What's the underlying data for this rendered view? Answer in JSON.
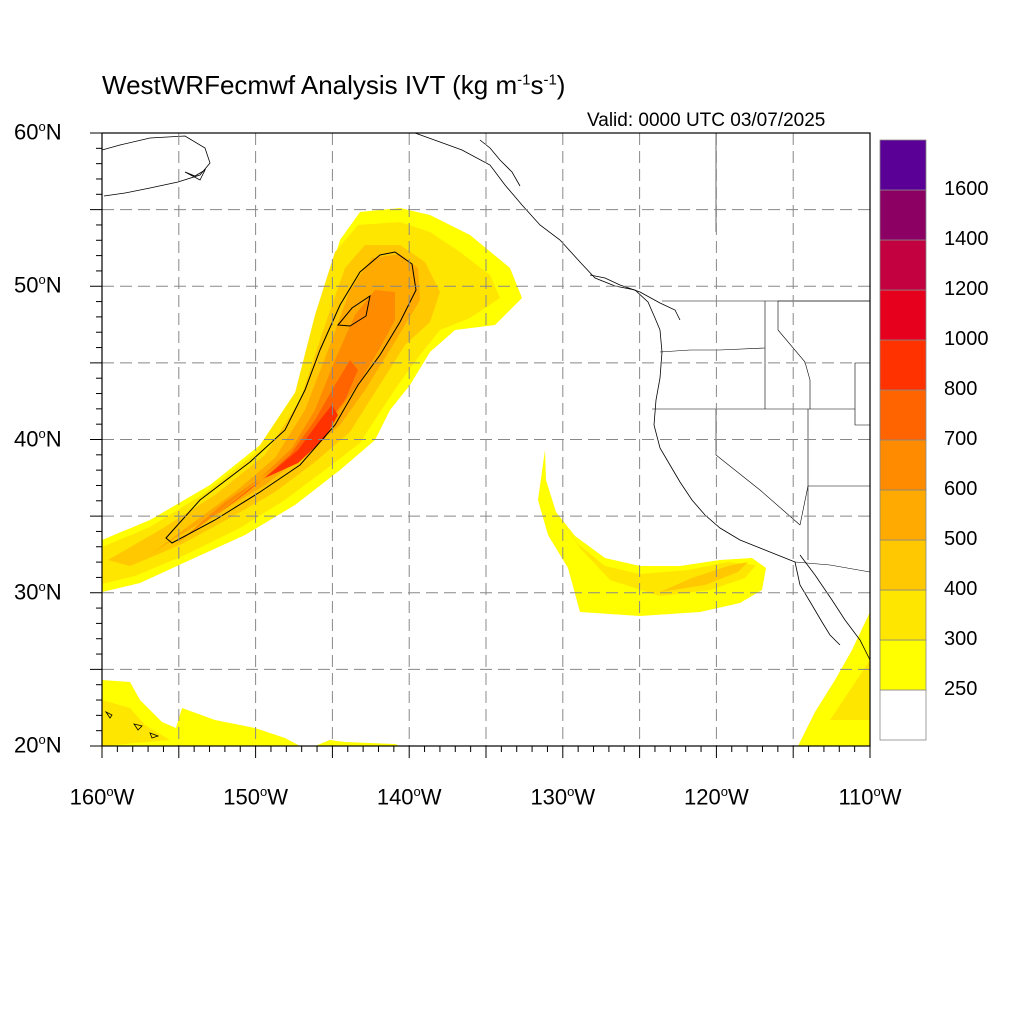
{
  "title": {
    "text": "WestWRFecmwf Analysis IVT (kg m",
    "sup1": "-1",
    "mid": "s",
    "sup2": "-1",
    "end": ")"
  },
  "valid": "Valid: 0000 UTC 03/07/2025",
  "map": {
    "projection": "cylindrical-equidistant",
    "lon_range": [
      -160,
      -110
    ],
    "lat_range": [
      20,
      60
    ],
    "grid_spacing_deg": 5,
    "gridlines": "dashed",
    "lat_labels": [
      {
        "lat": 60,
        "num": "60",
        "sym": "o",
        "hem": "N"
      },
      {
        "lat": 50,
        "num": "50",
        "sym": "o",
        "hem": "N"
      },
      {
        "lat": 40,
        "num": "40",
        "sym": "o",
        "hem": "N"
      },
      {
        "lat": 30,
        "num": "30",
        "sym": "o",
        "hem": "N"
      },
      {
        "lat": 20,
        "num": "20",
        "sym": "o",
        "hem": "N"
      }
    ],
    "lon_labels": [
      {
        "lon": -160,
        "num": "160",
        "sym": "o",
        "hem": "W"
      },
      {
        "lon": -150,
        "num": "150",
        "sym": "o",
        "hem": "W"
      },
      {
        "lon": -140,
        "num": "140",
        "sym": "o",
        "hem": "W"
      },
      {
        "lon": -130,
        "num": "130",
        "sym": "o",
        "hem": "W"
      },
      {
        "lon": -120,
        "num": "120",
        "sym": "o",
        "hem": "W"
      },
      {
        "lon": -110,
        "num": "110",
        "sym": "o",
        "hem": "W"
      }
    ]
  },
  "colorbar": {
    "levels": [
      "250",
      "300",
      "400",
      "500",
      "600",
      "700",
      "800",
      "1000",
      "1200",
      "1400",
      "1600"
    ],
    "colors": [
      "#ffffff",
      "#ffff00",
      "#ffe600",
      "#ffc800",
      "#ffaa00",
      "#ff8c00",
      "#ff6400",
      "#ff3200",
      "#e6001e",
      "#c30040",
      "#8c0064",
      "#5a0096"
    ]
  }
}
